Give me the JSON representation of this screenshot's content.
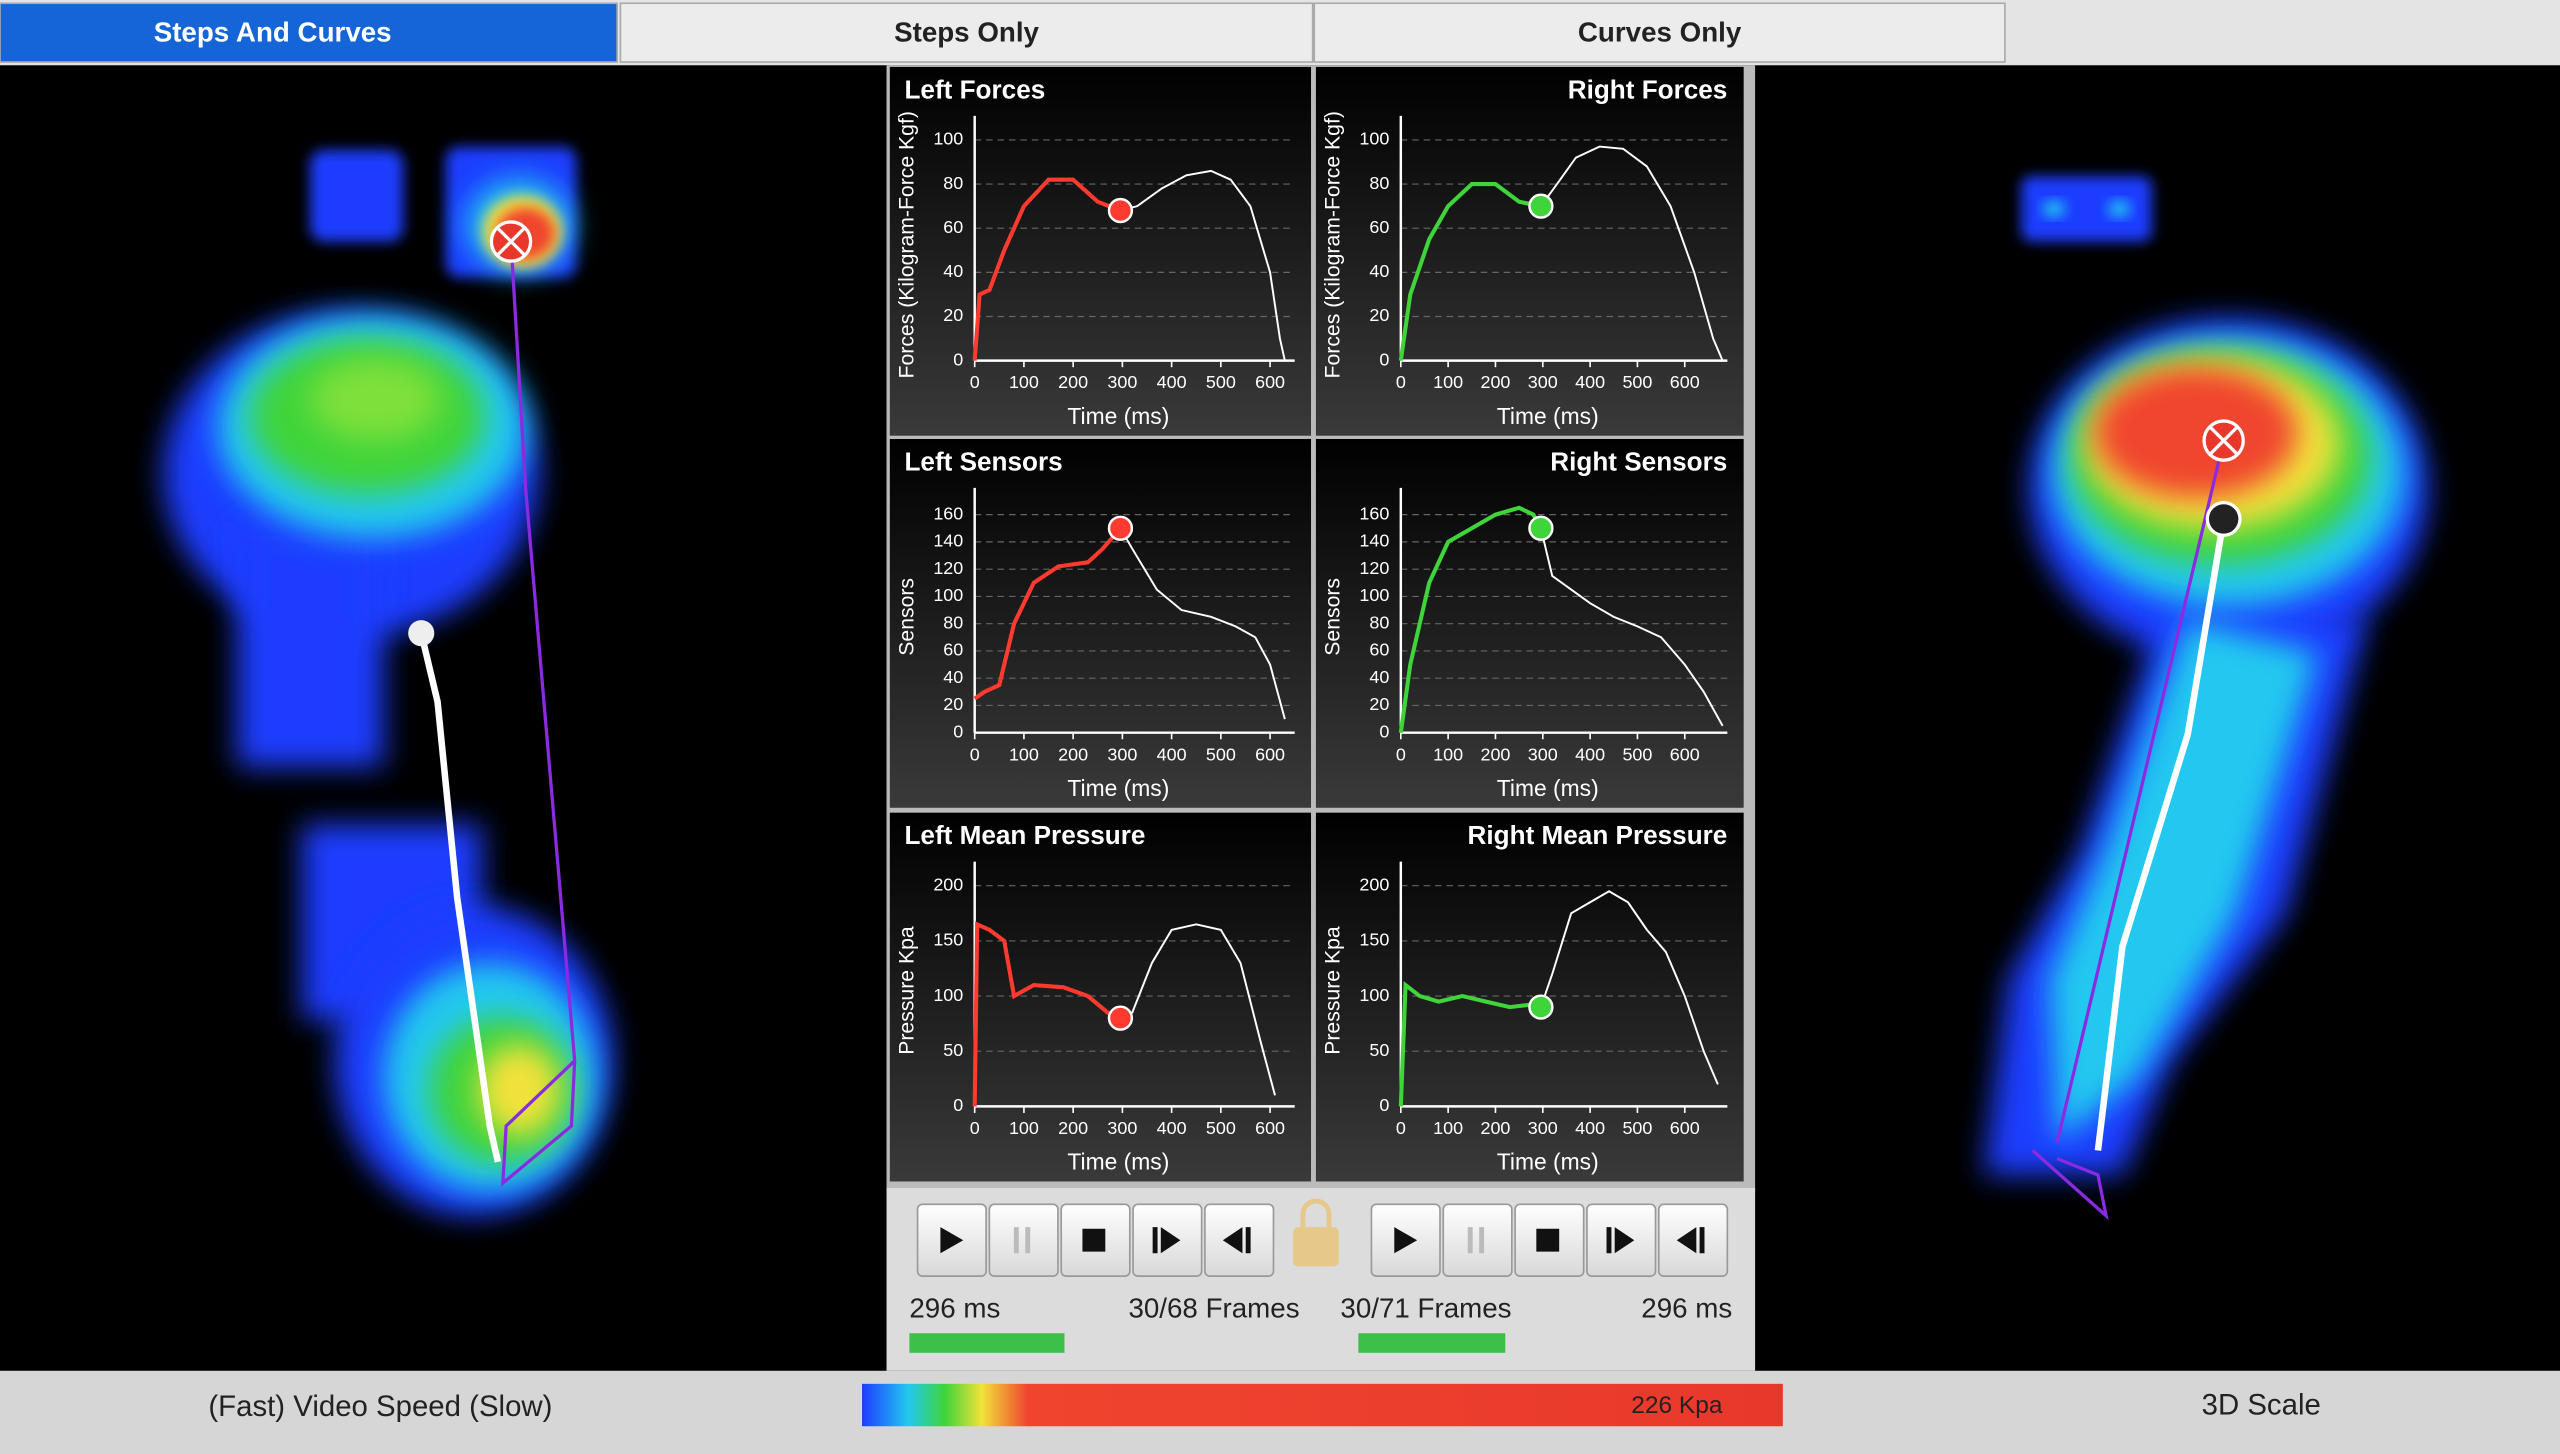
{
  "tabs": [
    "Steps And Curves",
    "Steps Only",
    "Curves Only"
  ],
  "panels": [
    {
      "title": "Left Forces",
      "y_label": "Forces (Kilogram-Force Kgf)",
      "x_label": "Time (ms)",
      "xlim": [
        0,
        650
      ],
      "ylim": [
        0,
        105
      ],
      "xticks": [
        0,
        100,
        200,
        300,
        400,
        500,
        600
      ],
      "yticks": [
        0,
        20,
        40,
        60,
        80,
        100
      ],
      "series": [
        {
          "color": "#ff3b2f",
          "x": [
            0,
            10,
            30,
            60,
            100,
            150,
            200,
            250,
            296
          ],
          "values": [
            0,
            30,
            32,
            50,
            70,
            82,
            82,
            72,
            68
          ]
        },
        {
          "color": "#ffffff",
          "x": [
            296,
            330,
            380,
            430,
            480,
            520,
            560,
            600,
            620,
            630
          ],
          "values": [
            68,
            70,
            78,
            84,
            86,
            82,
            70,
            40,
            10,
            0
          ]
        }
      ]
    },
    {
      "title": "Right Forces",
      "y_label": "Forces (Kilogram-Force Kgf)",
      "x_label": "Time (ms)",
      "xlim": [
        0,
        690
      ],
      "ylim": [
        0,
        105
      ],
      "xticks": [
        0,
        100,
        200,
        300,
        400,
        500,
        600
      ],
      "yticks": [
        0,
        20,
        40,
        60,
        80,
        100
      ],
      "series": [
        {
          "color": "#3fd43a",
          "x": [
            0,
            20,
            60,
            100,
            150,
            200,
            250,
            296
          ],
          "values": [
            0,
            30,
            55,
            70,
            80,
            80,
            72,
            70
          ]
        },
        {
          "color": "#ffffff",
          "x": [
            296,
            330,
            370,
            420,
            470,
            520,
            570,
            620,
            660,
            680
          ],
          "values": [
            70,
            80,
            92,
            97,
            96,
            88,
            70,
            40,
            10,
            0
          ]
        }
      ]
    },
    {
      "title": "Left Sensors",
      "y_label": "Sensors",
      "x_label": "Time (ms)",
      "xlim": [
        0,
        650
      ],
      "ylim": [
        0,
        170
      ],
      "xticks": [
        0,
        100,
        200,
        300,
        400,
        500,
        600
      ],
      "yticks": [
        0,
        20,
        40,
        60,
        80,
        100,
        120,
        140,
        160
      ],
      "series": [
        {
          "color": "#ff3b2f",
          "x": [
            0,
            20,
            50,
            80,
            120,
            170,
            230,
            260,
            296
          ],
          "values": [
            25,
            30,
            35,
            80,
            110,
            122,
            125,
            135,
            150
          ]
        },
        {
          "color": "#ffffff",
          "x": [
            296,
            320,
            370,
            420,
            480,
            530,
            570,
            600,
            630
          ],
          "values": [
            150,
            135,
            105,
            90,
            85,
            78,
            70,
            50,
            10
          ]
        }
      ]
    },
    {
      "title": "Right Sensors",
      "y_label": "Sensors",
      "x_label": "Time (ms)",
      "xlim": [
        0,
        690
      ],
      "ylim": [
        0,
        170
      ],
      "xticks": [
        0,
        100,
        200,
        300,
        400,
        500,
        600
      ],
      "yticks": [
        0,
        20,
        40,
        60,
        80,
        100,
        120,
        140,
        160
      ],
      "series": [
        {
          "color": "#3fd43a",
          "x": [
            0,
            20,
            60,
            100,
            150,
            200,
            250,
            280,
            296
          ],
          "values": [
            0,
            50,
            110,
            140,
            150,
            160,
            165,
            160,
            150
          ]
        },
        {
          "color": "#ffffff",
          "x": [
            296,
            320,
            360,
            400,
            450,
            500,
            550,
            600,
            640,
            680
          ],
          "values": [
            150,
            115,
            105,
            95,
            85,
            78,
            70,
            50,
            30,
            5
          ]
        }
      ]
    },
    {
      "title": "Left Mean Pressure",
      "y_label": "Pressure Kpa",
      "x_label": "Time (ms)",
      "xlim": [
        0,
        650
      ],
      "ylim": [
        0,
        210
      ],
      "xticks": [
        0,
        100,
        200,
        300,
        400,
        500,
        600
      ],
      "yticks": [
        0,
        50,
        100,
        150,
        200
      ],
      "series": [
        {
          "color": "#ff3b2f",
          "x": [
            0,
            5,
            30,
            60,
            80,
            120,
            180,
            230,
            270,
            296
          ],
          "values": [
            0,
            165,
            160,
            150,
            100,
            110,
            108,
            100,
            85,
            80
          ]
        },
        {
          "color": "#ffffff",
          "x": [
            296,
            320,
            360,
            400,
            450,
            500,
            540,
            580,
            610
          ],
          "values": [
            80,
            85,
            130,
            160,
            165,
            160,
            130,
            60,
            10
          ]
        }
      ]
    },
    {
      "title": "Right Mean Pressure",
      "y_label": "Pressure Kpa",
      "x_label": "Time (ms)",
      "xlim": [
        0,
        690
      ],
      "ylim": [
        0,
        210
      ],
      "xticks": [
        0,
        100,
        200,
        300,
        400,
        500,
        600
      ],
      "yticks": [
        0,
        50,
        100,
        150,
        200
      ],
      "series": [
        {
          "color": "#3fd43a",
          "x": [
            0,
            10,
            40,
            80,
            130,
            180,
            230,
            270,
            296
          ],
          "values": [
            0,
            110,
            100,
            95,
            100,
            95,
            90,
            92,
            90
          ]
        },
        {
          "color": "#ffffff",
          "x": [
            296,
            320,
            360,
            400,
            440,
            480,
            520,
            560,
            600,
            640,
            670
          ],
          "values": [
            90,
            120,
            175,
            185,
            195,
            185,
            160,
            140,
            100,
            50,
            20
          ]
        }
      ]
    }
  ],
  "controls": {
    "left": {
      "time": "296 ms",
      "frames": "30/68 Frames"
    },
    "right": {
      "frames": "30/71 Frames",
      "time": "296 ms"
    }
  },
  "status_bar": {
    "video_speed": "(Fast)  Video Speed  (Slow)",
    "scale_label": "226 Kpa",
    "scale_3d": "3D Scale"
  }
}
